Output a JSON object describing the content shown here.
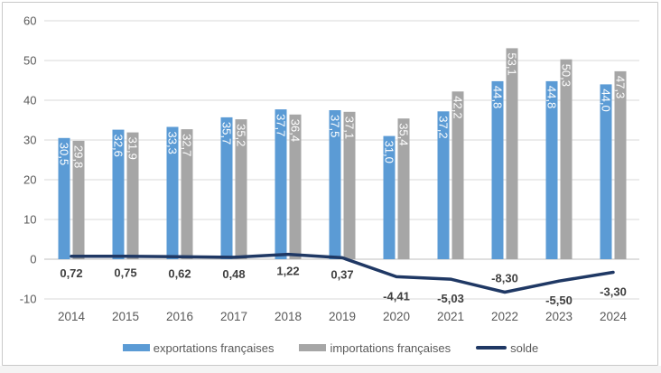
{
  "chart_data": {
    "type": "bar+line",
    "title": "",
    "xlabel": "",
    "ylabel": "",
    "categories": [
      "2014",
      "2015",
      "2016",
      "2017",
      "2018",
      "2019",
      "2020",
      "2021",
      "2022",
      "2023",
      "2024"
    ],
    "series": [
      {
        "name": "exportations françaises",
        "type": "bar",
        "color": "#5B9BD5",
        "values": [
          30.5,
          32.6,
          33.3,
          35.7,
          37.7,
          37.5,
          31.0,
          37.2,
          44.8,
          44.8,
          44.0
        ],
        "labels": [
          "30,5",
          "32,6",
          "33,3",
          "35,7",
          "37,7",
          "37,5",
          "31,0",
          "37,2",
          "44,8",
          "44,8",
          "44,0"
        ]
      },
      {
        "name": "importations françaises",
        "type": "bar",
        "color": "#A6A6A6",
        "values": [
          29.8,
          31.9,
          32.7,
          35.2,
          36.4,
          37.1,
          35.4,
          42.2,
          53.1,
          50.3,
          47.3
        ],
        "labels": [
          "29,8",
          "31,9",
          "32,7",
          "35,2",
          "36,4",
          "37,1",
          "35,4",
          "42,2",
          "53,1",
          "50,3",
          "47,3"
        ]
      },
      {
        "name": "solde",
        "type": "line",
        "color": "#1F3864",
        "values": [
          0.72,
          0.75,
          0.62,
          0.48,
          1.22,
          0.37,
          -4.41,
          -5.03,
          -8.3,
          -5.5,
          -3.3
        ],
        "labels": [
          "0,72",
          "0,75",
          "0,62",
          "0,48",
          "1,22",
          "0,37",
          "-4,41",
          "-5,03",
          "-8,30",
          "-5,50",
          "-3,30"
        ],
        "label_placement": [
          "below",
          "below",
          "below",
          "below",
          "below",
          "below",
          "below",
          "below",
          "above",
          "below",
          "below"
        ]
      }
    ],
    "ylim": [
      -10,
      60
    ],
    "ytick_step": 10,
    "yticks": [
      "60",
      "50",
      "40",
      "30",
      "20",
      "10",
      "0",
      "-10"
    ],
    "grid": true,
    "legend_position": "bottom",
    "colors": {
      "gridline": "#D9D9D9",
      "zero_axis": "#BFBFBF",
      "axis_text": "#595959",
      "bar_label_text": "#FFFFFF",
      "line_label_text": "#404040",
      "frame_border": "#C9C9C9"
    }
  }
}
